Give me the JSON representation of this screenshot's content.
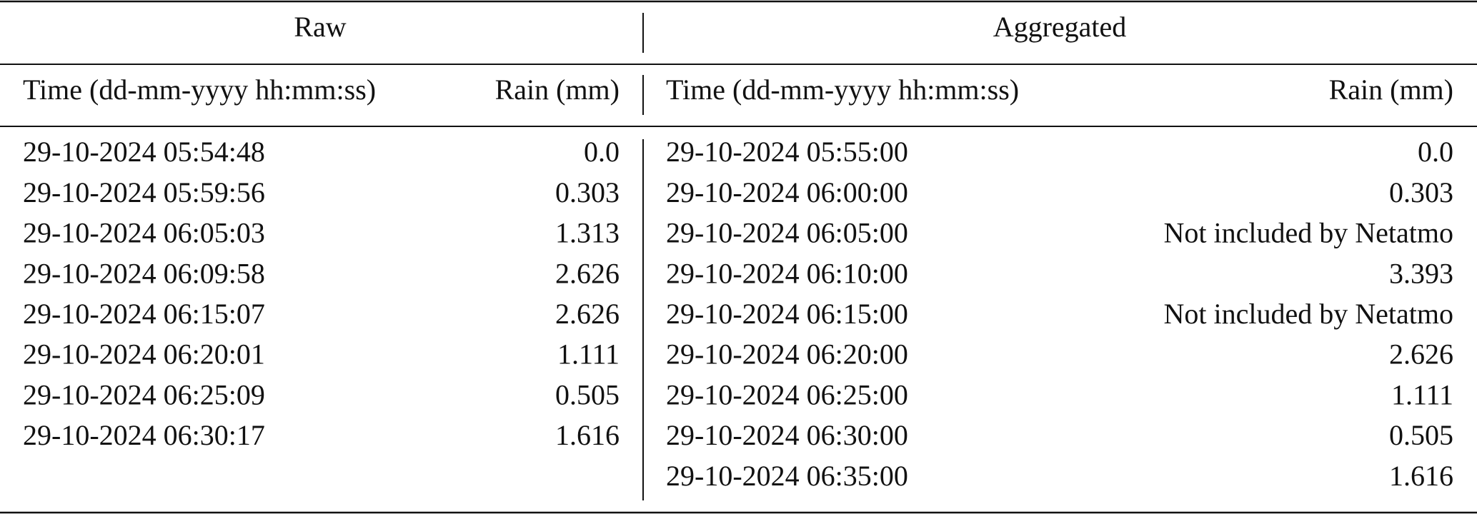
{
  "table": {
    "groups": [
      "Raw",
      "Aggregated"
    ],
    "raw": {
      "headers": [
        "Time (dd-mm-yyyy hh:mm:ss)",
        "Rain (mm)"
      ],
      "rows": [
        [
          "29-10-2024 05:54:48",
          "0.0"
        ],
        [
          "29-10-2024 05:59:56",
          "0.303"
        ],
        [
          "29-10-2024 06:05:03",
          "1.313"
        ],
        [
          "29-10-2024 06:09:58",
          "2.626"
        ],
        [
          "29-10-2024 06:15:07",
          "2.626"
        ],
        [
          "29-10-2024 06:20:01",
          "1.111"
        ],
        [
          "29-10-2024 06:25:09",
          "0.505"
        ],
        [
          "29-10-2024 06:30:17",
          "1.616"
        ]
      ]
    },
    "aggregated": {
      "headers": [
        "Time (dd-mm-yyyy hh:mm:ss)",
        "Rain (mm)"
      ],
      "rows": [
        [
          "29-10-2024 05:55:00",
          "0.0"
        ],
        [
          "29-10-2024 06:00:00",
          "0.303"
        ],
        [
          "29-10-2024 06:05:00",
          "Not included by Netatmo"
        ],
        [
          "29-10-2024 06:10:00",
          "3.393"
        ],
        [
          "29-10-2024 06:15:00",
          "Not included by Netatmo"
        ],
        [
          "29-10-2024 06:20:00",
          "2.626"
        ],
        [
          "29-10-2024 06:25:00",
          "1.111"
        ],
        [
          "29-10-2024 06:30:00",
          "0.505"
        ],
        [
          "29-10-2024 06:35:00",
          "1.616"
        ]
      ]
    }
  }
}
